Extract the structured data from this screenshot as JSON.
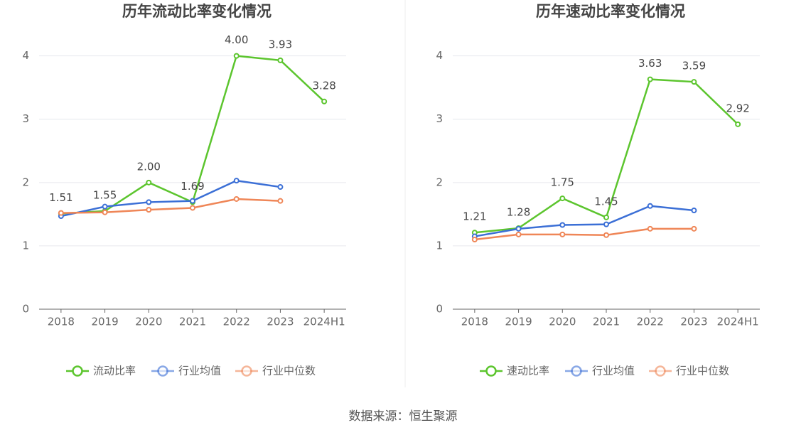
{
  "chart_data": [
    {
      "type": "line",
      "title": "历年流动比率变化情况",
      "categories": [
        "2018",
        "2019",
        "2020",
        "2021",
        "2022",
        "2023",
        "2024H1"
      ],
      "series": [
        {
          "name": "流动比率",
          "color": "#5cc52e",
          "values": [
            1.51,
            1.55,
            2.0,
            1.69,
            4.0,
            3.93,
            3.28
          ],
          "value_labels": [
            "1.51",
            "1.55",
            "2.00",
            "1.69",
            "4.00",
            "3.93",
            "3.28"
          ]
        },
        {
          "name": "行业均值",
          "color": "#3b6fd6",
          "values": [
            1.47,
            1.62,
            1.69,
            1.71,
            2.03,
            1.93,
            null
          ]
        },
        {
          "name": "行业中位数",
          "color": "#ef8657",
          "values": [
            1.52,
            1.53,
            1.57,
            1.6,
            1.74,
            1.71,
            null
          ]
        }
      ],
      "ylim": [
        0,
        4.4
      ],
      "yticks": [
        0,
        1,
        2,
        3,
        4
      ],
      "grid": true
    },
    {
      "type": "line",
      "title": "历年速动比率变化情况",
      "categories": [
        "2018",
        "2019",
        "2020",
        "2021",
        "2022",
        "2023",
        "2024H1"
      ],
      "series": [
        {
          "name": "速动比率",
          "color": "#5cc52e",
          "values": [
            1.21,
            1.28,
            1.75,
            1.45,
            3.63,
            3.59,
            2.92
          ],
          "value_labels": [
            "1.21",
            "1.28",
            "1.75",
            "1.45",
            "3.63",
            "3.59",
            "2.92"
          ]
        },
        {
          "name": "行业均值",
          "color": "#3b6fd6",
          "values": [
            1.15,
            1.27,
            1.33,
            1.34,
            1.63,
            1.56,
            null
          ]
        },
        {
          "name": "行业中位数",
          "color": "#ef8657",
          "values": [
            1.1,
            1.18,
            1.18,
            1.17,
            1.27,
            1.27,
            null
          ]
        }
      ],
      "ylim": [
        0,
        4.4
      ],
      "yticks": [
        0,
        1,
        2,
        3,
        4
      ],
      "grid": true
    }
  ],
  "source": "数据来源：恒生聚源"
}
